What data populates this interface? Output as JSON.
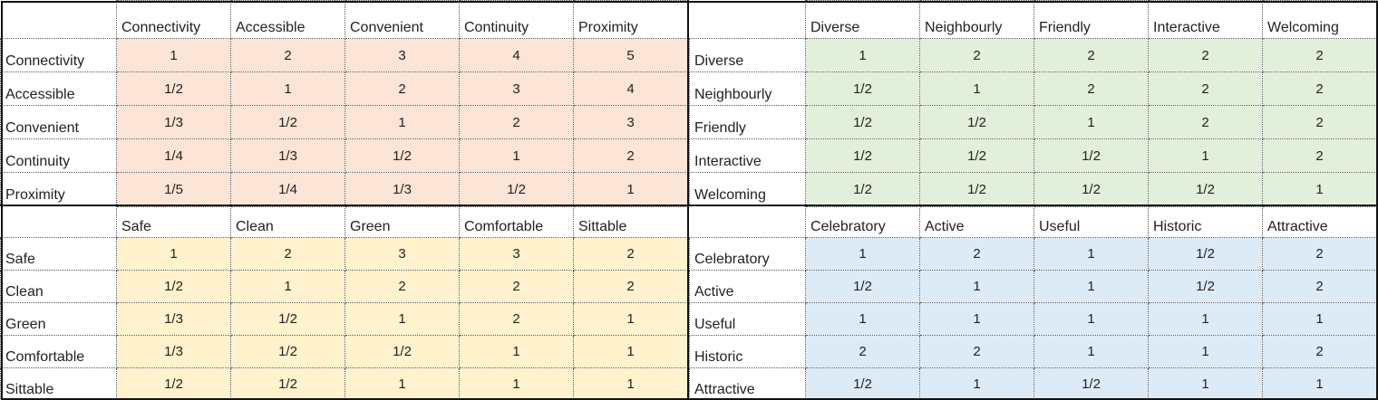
{
  "quadrants": [
    {
      "color": "#fce4d6",
      "columns": [
        "Connectivity",
        "Accessible",
        "Convenient",
        "Continuity",
        "Proximity"
      ],
      "rows": [
        {
          "label": "Connectivity",
          "values": [
            "1",
            "2",
            "3",
            "4",
            "5"
          ]
        },
        {
          "label": "Accessible",
          "values": [
            "1/2",
            "1",
            "2",
            "3",
            "4"
          ]
        },
        {
          "label": "Convenient",
          "values": [
            "1/3",
            "1/2",
            "1",
            "2",
            "3"
          ]
        },
        {
          "label": "Continuity",
          "values": [
            "1/4",
            "1/3",
            "1/2",
            "1",
            "2"
          ]
        },
        {
          "label": "Proximity",
          "values": [
            "1/5",
            "1/4",
            "1/3",
            "1/2",
            "1"
          ]
        }
      ]
    },
    {
      "color": "#e2efda",
      "columns": [
        "Diverse",
        "Neighbourly",
        "Friendly",
        "Interactive",
        "Welcoming"
      ],
      "rows": [
        {
          "label": "Diverse",
          "values": [
            "1",
            "2",
            "2",
            "2",
            "2"
          ]
        },
        {
          "label": "Neighbourly",
          "values": [
            "1/2",
            "1",
            "2",
            "2",
            "2"
          ]
        },
        {
          "label": "Friendly",
          "values": [
            "1/2",
            "1/2",
            "1",
            "2",
            "2"
          ]
        },
        {
          "label": "Interactive",
          "values": [
            "1/2",
            "1/2",
            "1/2",
            "1",
            "2"
          ]
        },
        {
          "label": "Welcoming",
          "values": [
            "1/2",
            "1/2",
            "1/2",
            "1/2",
            "1"
          ]
        }
      ]
    },
    {
      "color": "#fff2cc",
      "columns": [
        "Safe",
        "Clean",
        "Green",
        "Comfortable",
        "Sittable"
      ],
      "rows": [
        {
          "label": "Safe",
          "values": [
            "1",
            "2",
            "3",
            "3",
            "2"
          ]
        },
        {
          "label": "Clean",
          "values": [
            "1/2",
            "1",
            "2",
            "2",
            "2"
          ]
        },
        {
          "label": "Green",
          "values": [
            "1/3",
            "1/2",
            "1",
            "2",
            "1"
          ]
        },
        {
          "label": "Comfortable",
          "values": [
            "1/3",
            "1/2",
            "1/2",
            "1",
            "1"
          ]
        },
        {
          "label": "Sittable",
          "values": [
            "1/2",
            "1/2",
            "1",
            "1",
            "1"
          ]
        }
      ]
    },
    {
      "color": "#ddebf7",
      "columns": [
        "Celebratory",
        "Active",
        "Useful",
        "Historic",
        "Attractive"
      ],
      "rows": [
        {
          "label": "Celebratory",
          "values": [
            "1",
            "2",
            "1",
            "1/2",
            "2"
          ]
        },
        {
          "label": "Active",
          "values": [
            "1/2",
            "1",
            "1",
            "1/2",
            "2"
          ]
        },
        {
          "label": "Useful",
          "values": [
            "1",
            "1",
            "1",
            "1",
            "1"
          ]
        },
        {
          "label": "Historic",
          "values": [
            "2",
            "2",
            "1",
            "1",
            "2"
          ]
        },
        {
          "label": "Attractive",
          "values": [
            "1/2",
            "1",
            "1/2",
            "1",
            "1"
          ]
        }
      ]
    }
  ]
}
